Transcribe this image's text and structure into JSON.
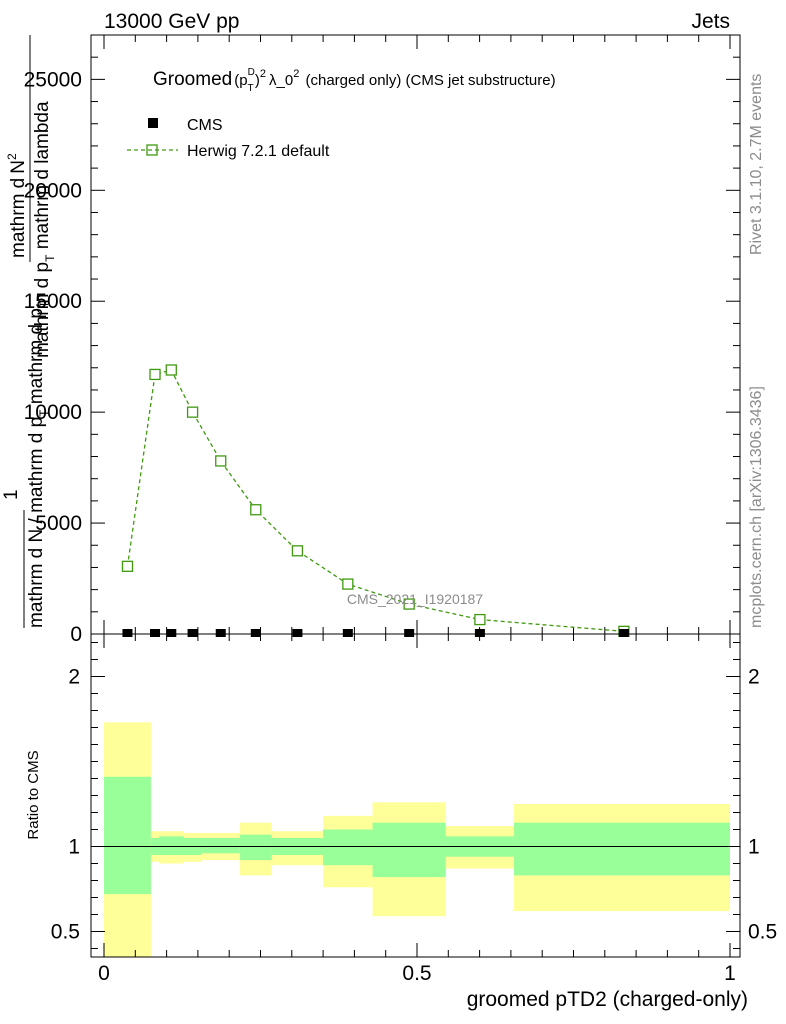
{
  "header": {
    "energy_label": "13000 GeV pp",
    "process_label": "Jets"
  },
  "side_labels": {
    "rivet_version": "Rivet 3.1.10,  2.7M events",
    "source": "mcplots.cern.ch [arXiv:1306.3436]"
  },
  "analysis_label": "CMS_2021_I1920187",
  "chart_data": [
    {
      "type": "line",
      "title": "Groomed (p_T^D)^2 λ_0^2  (charged only) (CMS jet substructure)",
      "title_parts": {
        "lead": "Groomed",
        "p": "(p",
        "sub": "T",
        "sup_d": "D",
        "close": ")",
        "sup2": "2",
        "lambda": "λ_0",
        "sup2b": "2",
        "rest": " (charged only) (CMS jet substructure)"
      },
      "ylabel_lines": {
        "numerator_top": "mathrm d²N",
        "numerator_bottom": "mathrm d p_T mathrm d lambda",
        "denominator_one": "1",
        "denominator_full": "mathrm d N / mathrm d p_T mathrm d p_T"
      },
      "ylabel_text": {
        "top_a": "mathrm d",
        "top_b": "N",
        "top_sup": "2",
        "mid_a": "mathrm d p",
        "mid_sub": "T",
        "mid_b": " mathrm d lambda",
        "one": "1",
        "bot_a": "mathrm d N / mathrm d p",
        "bot_sub": "T",
        "bot_b": " mathrm d p",
        "bot_sub2": "T"
      },
      "xlim": [
        0,
        1
      ],
      "ylim": [
        0,
        27000
      ],
      "y_ticks": [
        {
          "value": 0,
          "label": "0"
        },
        {
          "value": 5000,
          "label": "5000"
        },
        {
          "value": 10000,
          "label": "10000"
        },
        {
          "value": 15000,
          "label": "15000"
        },
        {
          "value": 20000,
          "label": "20000"
        },
        {
          "value": 25000,
          "label": "25000"
        }
      ],
      "legend_position": "top-left",
      "series": [
        {
          "name": "CMS",
          "style": "markers",
          "color": "#000000",
          "x": [
            0.0375,
            0.0815,
            0.1075,
            0.1415,
            0.1865,
            0.2425,
            0.309,
            0.3895,
            0.4875,
            0.6005,
            0.8305
          ],
          "y": [
            0,
            0,
            0,
            0,
            0,
            0,
            0,
            0,
            0,
            0,
            0
          ]
        },
        {
          "name": "Herwig 7.2.1 default",
          "style": "dashed-line-open-square",
          "color": "#3f9a10",
          "x": [
            0.0375,
            0.0815,
            0.1075,
            0.1415,
            0.1865,
            0.2425,
            0.309,
            0.3895,
            0.4875,
            0.6005,
            0.8305
          ],
          "y": [
            3050,
            11700,
            11900,
            10000,
            7800,
            5600,
            3750,
            2250,
            1350,
            650,
            120
          ]
        }
      ]
    },
    {
      "type": "area",
      "ylabel": "Ratio to CMS",
      "xlabel": "groomed pTD2 (charged-only)",
      "xlim": [
        0,
        1
      ],
      "ylim": [
        0.35,
        2.25
      ],
      "x_ticks": [
        {
          "value": 0,
          "label": "0"
        },
        {
          "value": 0.5,
          "label": "0.5"
        },
        {
          "value": 1,
          "label": "1"
        }
      ],
      "y_ticks": [
        {
          "value": 0.5,
          "label": "0.5"
        },
        {
          "value": 1,
          "label": "1"
        },
        {
          "value": 2,
          "label": "2"
        }
      ],
      "reference_line": 1,
      "bin_edges": [
        0.0,
        0.075,
        0.088,
        0.127,
        0.156,
        0.217,
        0.268,
        0.35,
        0.429,
        0.546,
        0.655,
        1.0
      ],
      "bins": [
        {
          "x0": 0.0,
          "x1": 0.075,
          "yellow": [
            0.35,
            1.73
          ],
          "green": [
            0.72,
            1.41
          ]
        },
        {
          "x0": 0.075,
          "x1": 0.088,
          "yellow": [
            0.91,
            1.09
          ],
          "green": [
            0.95,
            1.05
          ]
        },
        {
          "x0": 0.088,
          "x1": 0.127,
          "yellow": [
            0.9,
            1.09
          ],
          "green": [
            0.95,
            1.06
          ]
        },
        {
          "x0": 0.127,
          "x1": 0.156,
          "yellow": [
            0.91,
            1.08
          ],
          "green": [
            0.95,
            1.05
          ]
        },
        {
          "x0": 0.156,
          "x1": 0.217,
          "yellow": [
            0.92,
            1.08
          ],
          "green": [
            0.96,
            1.05
          ]
        },
        {
          "x0": 0.217,
          "x1": 0.268,
          "yellow": [
            0.83,
            1.14
          ],
          "green": [
            0.92,
            1.07
          ]
        },
        {
          "x0": 0.268,
          "x1": 0.35,
          "yellow": [
            0.89,
            1.09
          ],
          "green": [
            0.95,
            1.05
          ]
        },
        {
          "x0": 0.35,
          "x1": 0.429,
          "yellow": [
            0.76,
            1.18
          ],
          "green": [
            0.89,
            1.1
          ]
        },
        {
          "x0": 0.429,
          "x1": 0.546,
          "yellow": [
            0.59,
            1.26
          ],
          "green": [
            0.82,
            1.14
          ]
        },
        {
          "x0": 0.546,
          "x1": 0.655,
          "yellow": [
            0.87,
            1.12
          ],
          "green": [
            0.94,
            1.06
          ]
        },
        {
          "x0": 0.655,
          "x1": 1.0,
          "yellow": [
            0.62,
            1.25
          ],
          "green": [
            0.83,
            1.14
          ]
        }
      ]
    }
  ],
  "colors": {
    "yellow_band": "#ffff99",
    "green_band": "#99ff99",
    "herwig": "#3f9a10",
    "cms": "#000000",
    "watermark": "#8c8c8c"
  }
}
